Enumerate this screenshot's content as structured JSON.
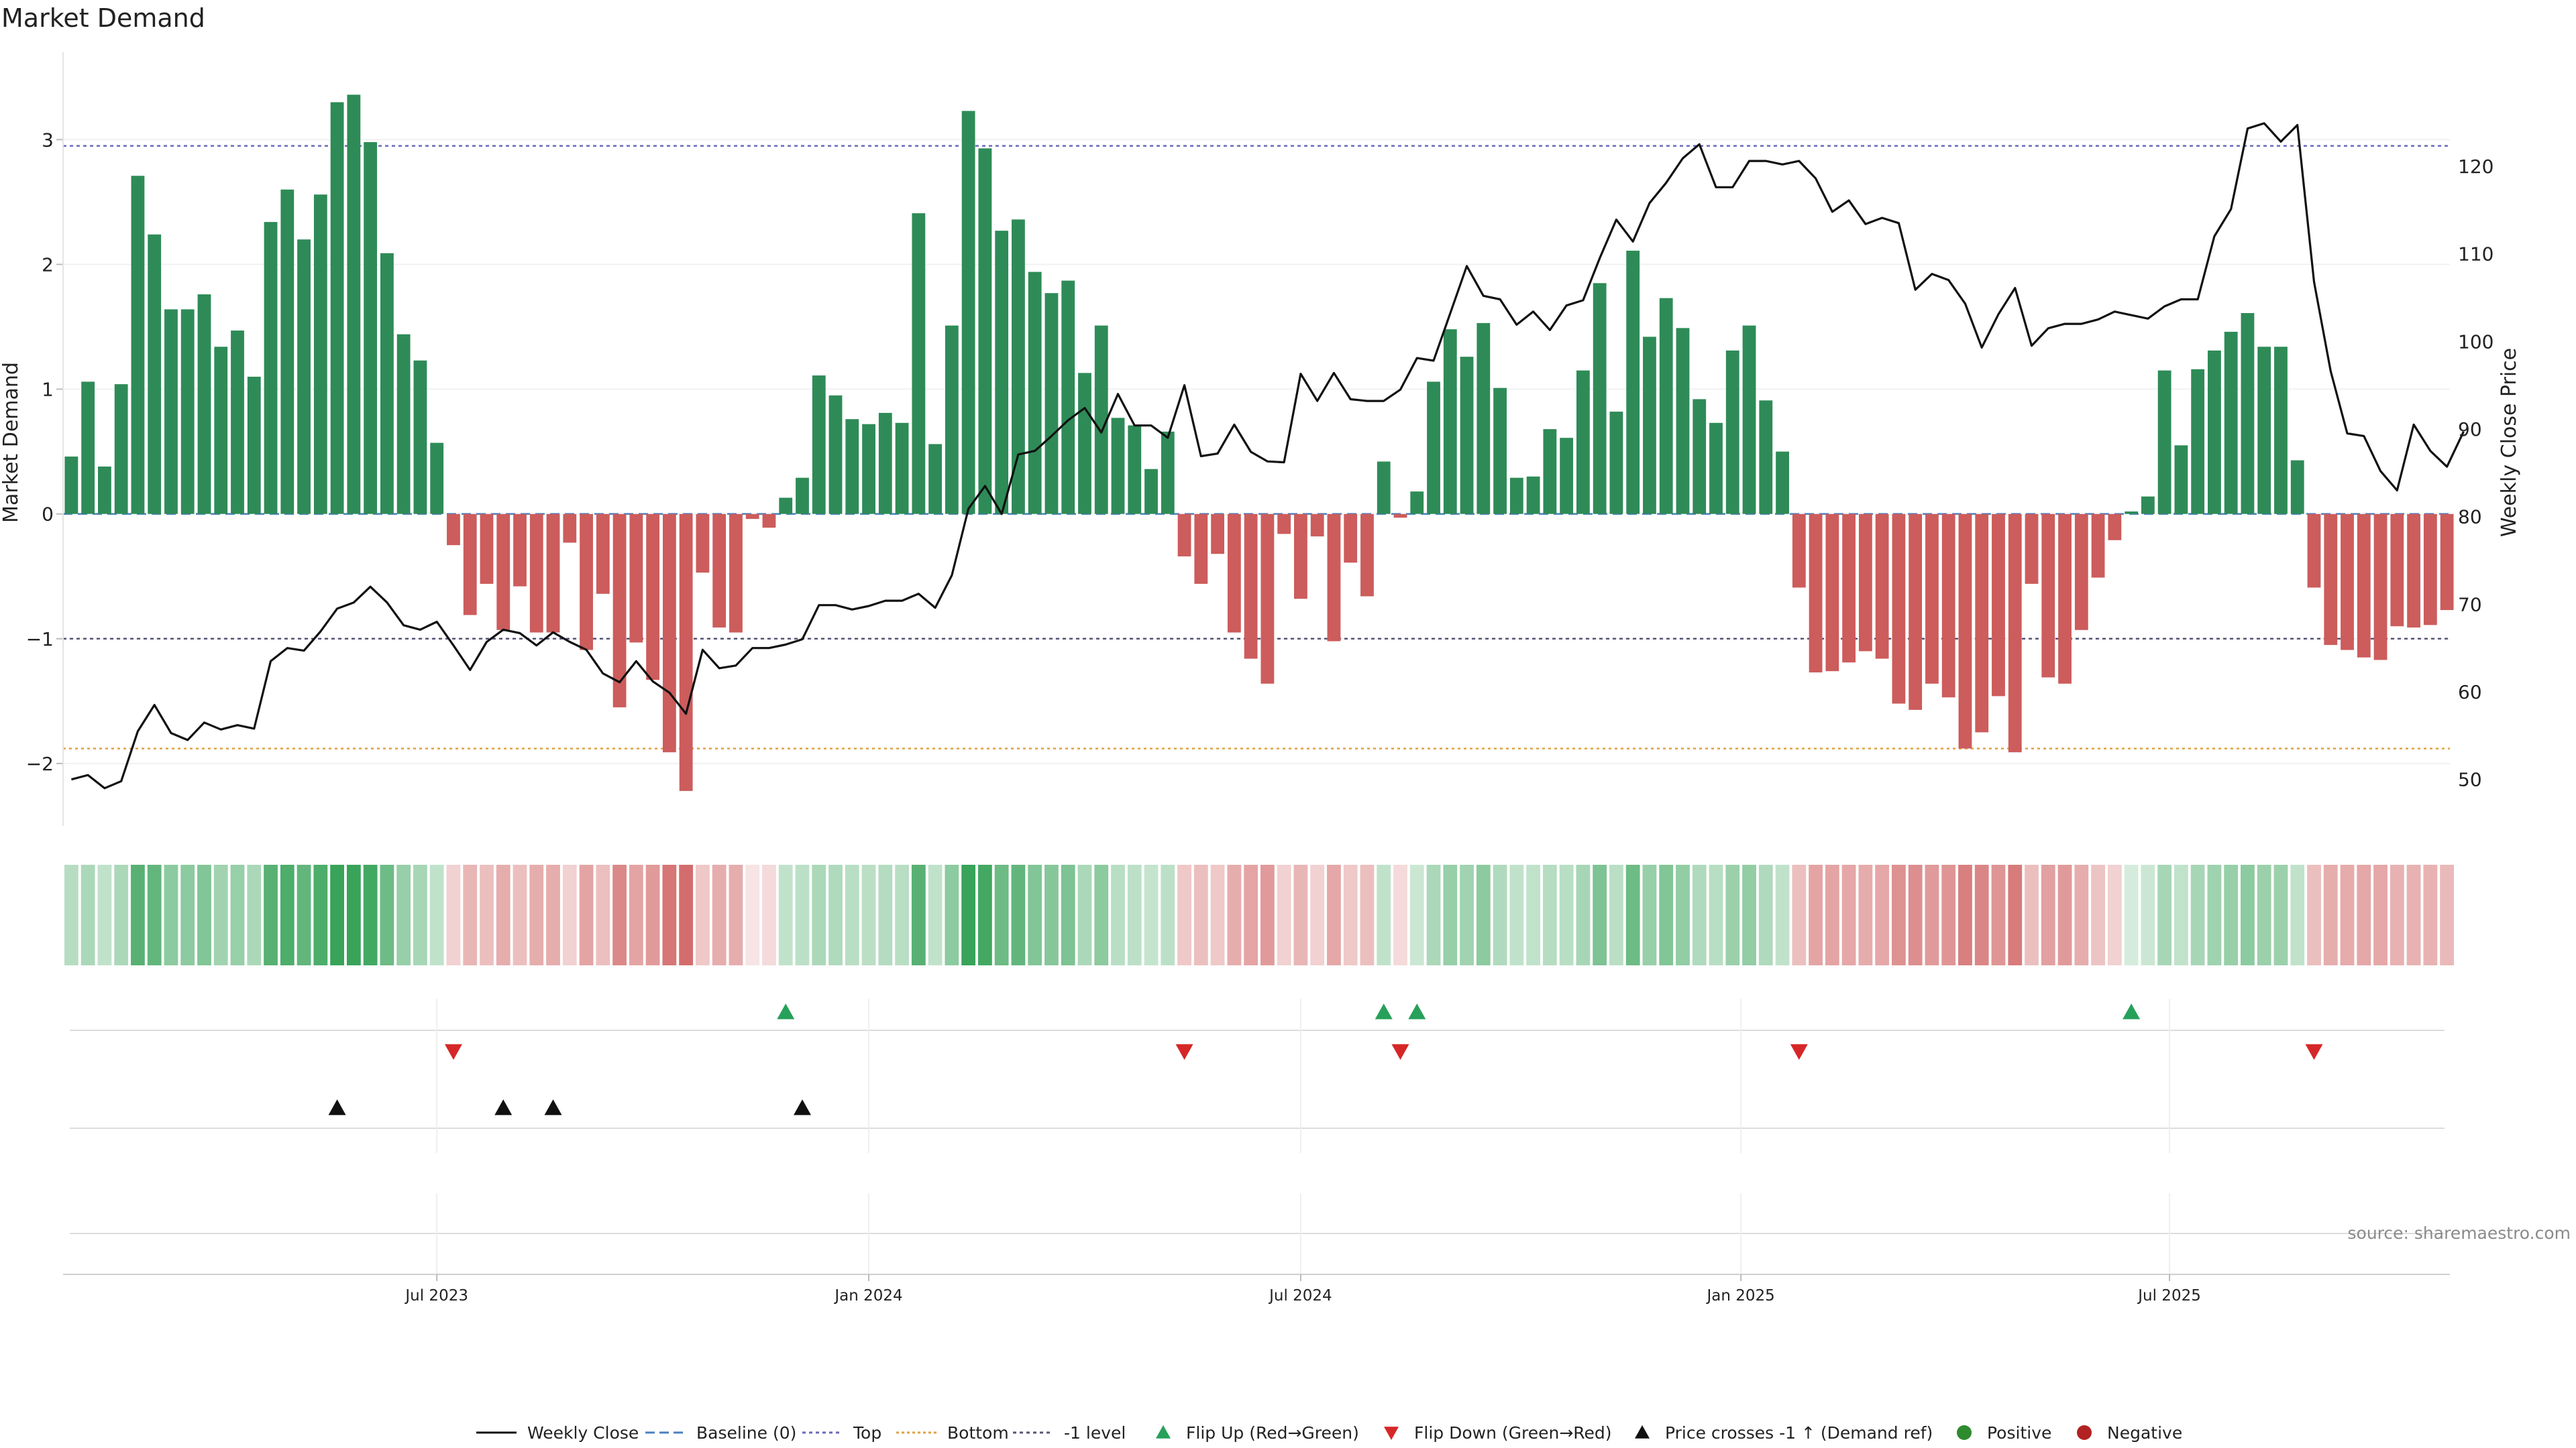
{
  "chart_data": {
    "type": "bar",
    "title": "Market Demand",
    "ylabel_left": "Market Demand",
    "ylabel_right": "Weekly Close Price",
    "ylim_left": [
      -2.5,
      3.7
    ],
    "ylim_right": [
      44.7,
      133.0
    ],
    "yticks_left": [
      -2,
      -1,
      0,
      1,
      2,
      3
    ],
    "ytick_labels_left": [
      "−2",
      "−1",
      "0",
      "1",
      "2",
      "3"
    ],
    "yticks_right": [
      50,
      60,
      70,
      80,
      90,
      100,
      110,
      120
    ],
    "ytick_labels_right": [
      "50",
      "60",
      "70",
      "80",
      "90",
      "100",
      "110",
      "120"
    ],
    "x_ticks": [
      {
        "label": "Jul 2023",
        "index": 22
      },
      {
        "label": "Jan 2024",
        "index": 48
      },
      {
        "label": "Jul 2024",
        "index": 74
      },
      {
        "label": "Jan 2025",
        "index": 100.5
      },
      {
        "label": "Jul 2025",
        "index": 126.3
      }
    ],
    "reference_lines": {
      "top": 2.95,
      "bottom": -1.88,
      "minus_one": -1.0,
      "baseline": 0
    },
    "demand": [
      0.46,
      1.06,
      0.38,
      1.04,
      2.71,
      2.24,
      1.64,
      1.64,
      1.76,
      1.34,
      1.47,
      1.1,
      2.34,
      2.6,
      2.2,
      2.56,
      3.3,
      3.36,
      2.98,
      2.09,
      1.44,
      1.23,
      0.57,
      -0.25,
      -0.81,
      -0.56,
      -0.93,
      -0.58,
      -0.95,
      -0.95,
      -0.23,
      -1.09,
      -0.64,
      -1.55,
      -1.03,
      -1.33,
      -1.91,
      -2.22,
      -0.47,
      -0.91,
      -0.95,
      -0.04,
      -0.11,
      0.13,
      0.29,
      1.11,
      0.95,
      0.76,
      0.72,
      0.81,
      0.73,
      2.41,
      0.56,
      1.51,
      3.23,
      2.93,
      2.27,
      2.36,
      1.94,
      1.77,
      1.87,
      1.13,
      1.51,
      0.77,
      0.71,
      0.36,
      0.66,
      -0.34,
      -0.56,
      -0.32,
      -0.95,
      -1.16,
      -1.36,
      -0.16,
      -0.68,
      -0.18,
      -1.02,
      -0.39,
      -0.66,
      0.42,
      -0.03,
      0.18,
      1.06,
      1.48,
      1.26,
      1.53,
      1.01,
      0.29,
      0.3,
      0.68,
      0.61,
      1.15,
      1.85,
      0.82,
      2.11,
      1.42,
      1.73,
      1.49,
      0.92,
      0.73,
      1.31,
      1.51,
      0.91,
      0.5,
      -0.59,
      -1.27,
      -1.26,
      -1.19,
      -1.1,
      -1.16,
      -1.52,
      -1.57,
      -1.36,
      -1.47,
      -1.88,
      -1.75,
      -1.46,
      -1.91,
      -0.56,
      -1.31,
      -1.36,
      -0.93,
      -0.51,
      -0.21,
      0.02,
      0.14,
      1.15,
      0.55,
      1.16,
      1.31,
      1.46,
      1.61,
      1.34,
      1.34,
      0.43,
      -0.59,
      -1.05,
      -1.09,
      -1.15,
      -1.17,
      -0.9,
      -0.91,
      -0.89,
      -0.77
    ],
    "weekly_close": [
      50.0,
      50.5,
      49.0,
      49.8,
      55.5,
      58.5,
      55.3,
      54.5,
      56.5,
      55.7,
      56.2,
      55.8,
      63.5,
      65.0,
      64.7,
      66.9,
      69.5,
      70.2,
      72.0,
      70.2,
      67.6,
      67.1,
      68.0,
      65.3,
      62.5,
      65.7,
      67.1,
      66.7,
      65.3,
      66.8,
      65.7,
      64.8,
      62.1,
      61.1,
      63.5,
      61.2,
      59.9,
      57.5,
      64.8,
      62.7,
      63.0,
      65.0,
      65.0,
      65.4,
      66.0,
      69.9,
      69.9,
      69.4,
      69.8,
      70.4,
      70.4,
      71.2,
      69.6,
      73.3,
      80.9,
      83.5,
      80.3,
      87.1,
      87.5,
      89.2,
      91.0,
      92.4,
      89.6,
      94.0,
      90.4,
      90.4,
      89.0,
      95.0,
      86.9,
      87.2,
      90.5,
      87.4,
      86.3,
      86.2,
      96.3,
      93.2,
      96.4,
      93.4,
      93.2,
      93.2,
      94.5,
      98.1,
      97.8,
      103.2,
      108.6,
      105.2,
      104.8,
      101.9,
      103.4,
      101.3,
      104.1,
      104.7,
      109.5,
      113.9,
      111.4,
      115.8,
      118.1,
      120.9,
      122.5,
      117.6,
      117.6,
      120.6,
      120.6,
      120.2,
      120.6,
      118.6,
      114.8,
      116.1,
      113.4,
      114.1,
      113.5,
      105.9,
      107.7,
      107.0,
      104.3,
      99.3,
      103.1,
      106.1,
      99.5,
      101.5,
      102.0,
      102.0,
      102.5,
      103.4,
      103.0,
      102.6,
      104.0,
      104.8,
      104.8,
      112.0,
      115.1,
      124.3,
      124.9,
      122.8,
      124.7,
      106.8,
      96.6,
      89.5,
      89.2,
      85.2,
      83.0,
      90.5,
      87.5,
      85.7,
      89.7
    ],
    "regime_intensity": [
      0.35,
      0.4,
      0.3,
      0.4,
      0.8,
      0.75,
      0.55,
      0.55,
      0.6,
      0.45,
      0.5,
      0.4,
      0.8,
      0.85,
      0.75,
      0.85,
      0.95,
      0.95,
      0.9,
      0.7,
      0.5,
      0.42,
      0.3,
      0.25,
      0.4,
      0.35,
      0.45,
      0.35,
      0.45,
      0.45,
      0.25,
      0.5,
      0.35,
      0.65,
      0.5,
      0.55,
      0.75,
      0.8,
      0.3,
      0.45,
      0.45,
      0.15,
      0.2,
      0.3,
      0.32,
      0.4,
      0.38,
      0.34,
      0.33,
      0.36,
      0.34,
      0.8,
      0.3,
      0.55,
      0.95,
      0.9,
      0.7,
      0.75,
      0.6,
      0.58,
      0.62,
      0.4,
      0.55,
      0.34,
      0.32,
      0.28,
      0.32,
      0.3,
      0.35,
      0.3,
      0.45,
      0.5,
      0.55,
      0.25,
      0.4,
      0.25,
      0.48,
      0.3,
      0.35,
      0.3,
      0.2,
      0.25,
      0.4,
      0.5,
      0.45,
      0.55,
      0.38,
      0.3,
      0.3,
      0.35,
      0.34,
      0.42,
      0.62,
      0.33,
      0.7,
      0.5,
      0.6,
      0.52,
      0.38,
      0.34,
      0.48,
      0.52,
      0.38,
      0.3,
      0.35,
      0.5,
      0.5,
      0.48,
      0.46,
      0.48,
      0.6,
      0.62,
      0.55,
      0.58,
      0.7,
      0.66,
      0.58,
      0.72,
      0.35,
      0.52,
      0.55,
      0.45,
      0.32,
      0.25,
      0.2,
      0.25,
      0.42,
      0.3,
      0.42,
      0.46,
      0.5,
      0.55,
      0.48,
      0.48,
      0.3,
      0.35,
      0.45,
      0.46,
      0.48,
      0.48,
      0.42,
      0.42,
      0.42,
      0.38
    ],
    "events": {
      "flip_up": [
        43,
        79,
        81,
        124
      ],
      "flip_down": [
        23,
        67,
        80,
        104,
        135
      ],
      "price_cross_up": [
        16,
        26,
        29,
        44
      ]
    },
    "legend": [
      "Weekly Close",
      "Baseline (0)",
      "Top",
      "Bottom",
      "-1 level",
      "Flip Up (Red→Green)",
      "Flip Down (Green→Red)",
      "Price crosses -1 ↑ (Demand ref)",
      "Positive",
      "Negative"
    ],
    "source": "source: sharemaestro.com",
    "colors": {
      "positive": "#2e8b57",
      "negative": "#cd5c5c",
      "price": "#111111",
      "baseline": "#4a7fc1",
      "top": "#6a6ab8",
      "bottom": "#e0a040",
      "minus_one": "#555577",
      "flip_up": "#27a05a",
      "flip_down": "#d62728",
      "cross": "#111111",
      "pos_dot": "#2e8b2e",
      "neg_dot": "#b22222"
    }
  }
}
